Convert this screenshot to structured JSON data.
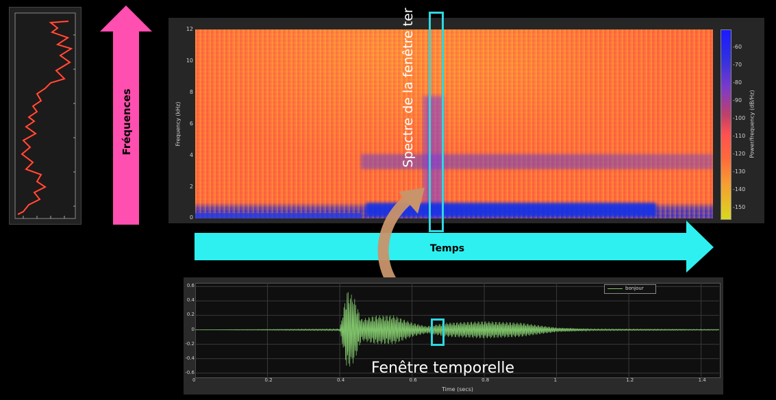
{
  "labels": {
    "frequences": "Fréquences",
    "temps": "Temps",
    "spectre": "Spectre de la fenêtre ter",
    "fenetre": "Fenêtre temporelle"
  },
  "spectrogram": {
    "ylabel": "Frequency (kHz)",
    "yticks": [
      "12",
      "10",
      "8",
      "6",
      "4",
      "2",
      "0"
    ],
    "colorbar_label": "Power/frequency (dB/Hz)",
    "colorbar_ticks": [
      "-60",
      "-70",
      "-80",
      "-90",
      "-100",
      "-110",
      "-120",
      "-130",
      "-140",
      "-150"
    ]
  },
  "colors": {
    "cyan": "#2ed8e0",
    "pink": "#ff4fb0",
    "tan": "#c8946a",
    "wave_green": "#7fc26a"
  },
  "chart_data": {
    "type": "line",
    "title": "",
    "xlabel": "Time (secs)",
    "ylabel": "",
    "xlim": [
      0,
      1.45
    ],
    "ylim": [
      -0.65,
      0.65
    ],
    "xticks": [
      "0",
      "0.2",
      "0.4",
      "0.6",
      "0.8",
      "1",
      "1.2",
      "1.4"
    ],
    "yticks": [
      "0.6",
      "0.4",
      "0.2",
      "0",
      "-0.2",
      "-0.4",
      "-0.6"
    ],
    "legend": "top-right",
    "series": [
      {
        "name": "bonjour",
        "envelope": [
          [
            0.0,
            0.0
          ],
          [
            0.4,
            0.01
          ],
          [
            0.42,
            0.55
          ],
          [
            0.44,
            0.45
          ],
          [
            0.46,
            0.15
          ],
          [
            0.5,
            0.2
          ],
          [
            0.55,
            0.2
          ],
          [
            0.6,
            0.1
          ],
          [
            0.64,
            0.05
          ],
          [
            0.7,
            0.1
          ],
          [
            0.8,
            0.12
          ],
          [
            0.9,
            0.1
          ],
          [
            1.0,
            0.03
          ],
          [
            1.1,
            0.01
          ],
          [
            1.45,
            0.005
          ]
        ]
      }
    ]
  }
}
